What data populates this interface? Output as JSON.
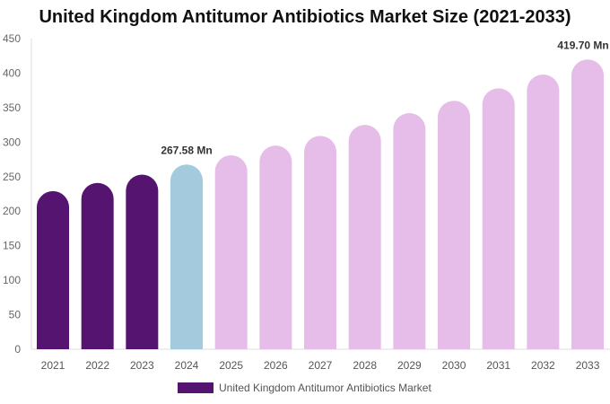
{
  "chart_data": {
    "type": "bar",
    "title": "United Kingdom Antitumor Antibiotics Market Size (2021-2033)",
    "categories": [
      "2021",
      "2022",
      "2023",
      "2024",
      "2025",
      "2026",
      "2027",
      "2028",
      "2029",
      "2030",
      "2031",
      "2032",
      "2033"
    ],
    "series": [
      {
        "name": "United Kingdom Antitumor Antibiotics Market",
        "values": [
          229,
          241,
          253,
          267.58,
          281,
          295,
          309,
          325,
          342,
          360,
          378,
          398,
          419.7
        ]
      }
    ],
    "data_labels": [
      {
        "category": "2024",
        "text": "267.58 Mn"
      },
      {
        "category": "2033",
        "text": "419.70 Mn"
      }
    ],
    "ylim": [
      0,
      450
    ],
    "yticks": [
      0,
      50,
      100,
      150,
      200,
      250,
      300,
      350,
      400,
      450
    ],
    "grid": false,
    "legend_position": "bottom",
    "colors": {
      "historical": "#541470",
      "current": "#a4cade",
      "forecast": "#e6bde8"
    }
  }
}
